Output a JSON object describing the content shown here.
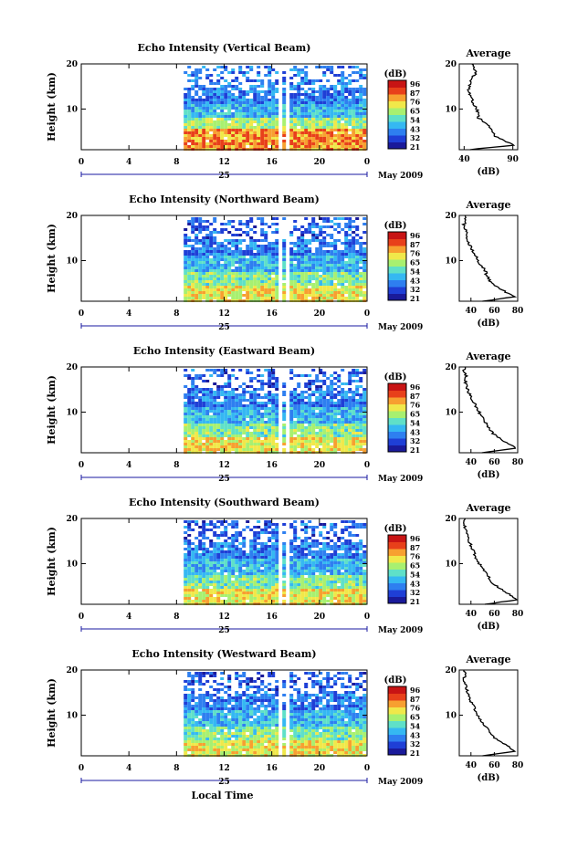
{
  "chart_data": [
    {
      "type": "heatmap",
      "title": "Echo Intensity (Vertical Beam)",
      "ylabel": "Height (km)",
      "ylim": [
        1,
        20
      ],
      "yticks": [
        10,
        20
      ],
      "xticks": [
        "0",
        "4",
        "8",
        "12",
        "16",
        "20",
        "0"
      ],
      "day_label": "25",
      "date_label": "May 2009",
      "data_gaps_hours": [
        [
          8.3,
          8.6
        ],
        [
          16.3,
          16.6
        ],
        [
          17.1,
          17.3
        ]
      ],
      "data_start_hour": 8.3,
      "colorbar": {
        "unit": "(dB)",
        "ticks": [
          "96",
          "87",
          "76",
          "65",
          "54",
          "43",
          "32",
          "21"
        ]
      },
      "profile": {
        "title": "Average",
        "xlabel": "(dB)",
        "xticks": [
          "40",
          "90"
        ],
        "xlim": [
          35,
          95
        ],
        "yticks": [
          10,
          20
        ],
        "height_km": [
          1,
          2,
          3,
          4,
          5,
          6,
          7,
          8,
          9,
          10,
          11,
          12,
          13,
          14,
          15,
          16,
          17,
          18,
          19,
          20
        ],
        "values_db": [
          45,
          90,
          82,
          72,
          68,
          66,
          62,
          55,
          54,
          53,
          50,
          48,
          46,
          44,
          45,
          47,
          48,
          52,
          50,
          48
        ]
      }
    },
    {
      "type": "heatmap",
      "title": "Echo Intensity (Northward Beam)",
      "ylabel": "Height (km)",
      "ylim": [
        1,
        20
      ],
      "yticks": [
        10,
        20
      ],
      "xticks": [
        "0",
        "4",
        "8",
        "12",
        "16",
        "20",
        "0"
      ],
      "day_label": "25",
      "date_label": "May 2009",
      "data_gaps_hours": [
        [
          8.3,
          8.6
        ],
        [
          16.3,
          16.6
        ],
        [
          17.1,
          17.3
        ]
      ],
      "data_start_hour": 8.3,
      "colorbar": {
        "unit": "(dB)",
        "ticks": [
          "96",
          "87",
          "76",
          "65",
          "54",
          "43",
          "32",
          "21"
        ]
      },
      "profile": {
        "title": "Average",
        "xlabel": "(dB)",
        "xticks": [
          "40",
          "60",
          "80"
        ],
        "xlim": [
          30,
          80
        ],
        "yticks": [
          10,
          20
        ],
        "height_km": [
          1,
          2,
          3,
          4,
          5,
          6,
          7,
          8,
          9,
          10,
          11,
          12,
          13,
          14,
          15,
          16,
          17,
          18,
          19,
          20
        ],
        "values_db": [
          50,
          78,
          70,
          64,
          58,
          55,
          53,
          52,
          48,
          46,
          44,
          42,
          40,
          38,
          37,
          36,
          35,
          34,
          36,
          35
        ]
      }
    },
    {
      "type": "heatmap",
      "title": "Echo Intensity (Eastward Beam)",
      "ylabel": "Height (km)",
      "ylim": [
        1,
        20
      ],
      "yticks": [
        10,
        20
      ],
      "xticks": [
        "0",
        "4",
        "8",
        "12",
        "16",
        "20",
        "0"
      ],
      "day_label": "25",
      "date_label": "May 2009",
      "data_gaps_hours": [
        [
          8.3,
          8.6
        ],
        [
          16.3,
          16.6
        ],
        [
          17.1,
          17.3
        ]
      ],
      "data_start_hour": 8.3,
      "colorbar": {
        "unit": "(dB)",
        "ticks": [
          "96",
          "87",
          "76",
          "65",
          "54",
          "43",
          "32",
          "21"
        ]
      },
      "profile": {
        "title": "Average",
        "xlabel": "(dB)",
        "xticks": [
          "40",
          "60",
          "80"
        ],
        "xlim": [
          30,
          80
        ],
        "yticks": [
          10,
          20
        ],
        "height_km": [
          1,
          2,
          3,
          4,
          5,
          6,
          7,
          8,
          9,
          10,
          11,
          12,
          13,
          14,
          15,
          16,
          17,
          18,
          19,
          20
        ],
        "values_db": [
          50,
          78,
          72,
          66,
          60,
          56,
          54,
          52,
          49,
          47,
          45,
          43,
          41,
          39,
          37,
          36,
          35,
          36,
          34,
          35
        ]
      }
    },
    {
      "type": "heatmap",
      "title": "Echo Intensity (Southward Beam)",
      "ylabel": "Height (km)",
      "ylim": [
        1,
        20
      ],
      "yticks": [
        10,
        20
      ],
      "xticks": [
        "0",
        "4",
        "8",
        "12",
        "16",
        "20",
        "0"
      ],
      "day_label": "25",
      "date_label": "May 2009",
      "data_gaps_hours": [
        [
          8.3,
          8.6
        ],
        [
          16.3,
          16.6
        ],
        [
          17.1,
          17.3
        ]
      ],
      "data_start_hour": 8.3,
      "colorbar": {
        "unit": "(dB)",
        "ticks": [
          "96",
          "87",
          "76",
          "65",
          "54",
          "43",
          "32",
          "21"
        ]
      },
      "profile": {
        "title": "Average",
        "xlabel": "(dB)",
        "xticks": [
          "40",
          "60",
          "80"
        ],
        "xlim": [
          30,
          80
        ],
        "yticks": [
          10,
          20
        ],
        "height_km": [
          1,
          2,
          3,
          4,
          5,
          6,
          7,
          8,
          9,
          10,
          11,
          12,
          13,
          14,
          15,
          16,
          17,
          18,
          19,
          20
        ],
        "values_db": [
          52,
          80,
          74,
          68,
          62,
          57,
          55,
          53,
          50,
          47,
          45,
          43,
          42,
          40,
          38,
          37,
          36,
          35,
          34,
          35
        ]
      }
    },
    {
      "type": "heatmap",
      "title": "Echo Intensity (Westward Beam)",
      "ylabel": "Height (km)",
      "xlabel": "Local Time",
      "ylim": [
        1,
        20
      ],
      "yticks": [
        10,
        20
      ],
      "xticks": [
        "0",
        "4",
        "8",
        "12",
        "16",
        "20",
        "0"
      ],
      "day_label": "25",
      "date_label": "May 2009",
      "data_gaps_hours": [
        [
          8.3,
          8.6
        ],
        [
          16.3,
          16.6
        ],
        [
          17.1,
          17.3
        ]
      ],
      "data_start_hour": 8.3,
      "colorbar": {
        "unit": "(dB)",
        "ticks": [
          "96",
          "87",
          "76",
          "65",
          "54",
          "43",
          "32",
          "21"
        ]
      },
      "profile": {
        "title": "Average",
        "xlabel": "(dB)",
        "xticks": [
          "40",
          "60",
          "80"
        ],
        "xlim": [
          30,
          80
        ],
        "yticks": [
          10,
          20
        ],
        "height_km": [
          1,
          2,
          3,
          4,
          5,
          6,
          7,
          8,
          9,
          10,
          11,
          12,
          13,
          14,
          15,
          16,
          17,
          18,
          19,
          20
        ],
        "values_db": [
          50,
          78,
          72,
          66,
          60,
          56,
          54,
          51,
          48,
          46,
          44,
          42,
          40,
          39,
          37,
          36,
          35,
          34,
          35,
          34
        ]
      }
    }
  ],
  "colormap": [
    "#1a1a9a",
    "#1f3fd6",
    "#2e7ff0",
    "#35b8f2",
    "#5fe0c8",
    "#a8f070",
    "#f0e84a",
    "#f7a030",
    "#e8401a",
    "#c81414"
  ]
}
